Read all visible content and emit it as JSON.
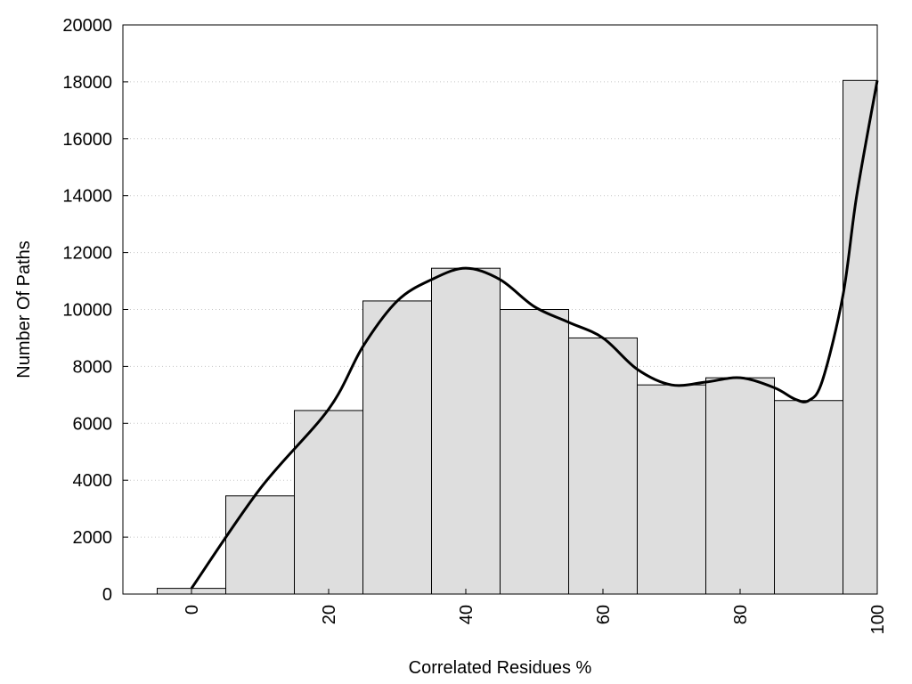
{
  "chart_data": {
    "type": "bar",
    "xlabel": "Correlated Residues %",
    "ylabel": "Number Of Paths",
    "xlim": [
      -10,
      100
    ],
    "ylim": [
      0,
      20000
    ],
    "x_ticks": [
      0,
      20,
      40,
      60,
      80,
      100
    ],
    "y_ticks": [
      0,
      2000,
      4000,
      6000,
      8000,
      10000,
      12000,
      14000,
      16000,
      18000,
      20000
    ],
    "grid": "horizontal dotted",
    "bin_width": 10,
    "bars": [
      {
        "x": 0,
        "value": 200
      },
      {
        "x": 10,
        "value": 3450
      },
      {
        "x": 20,
        "value": 6450
      },
      {
        "x": 30,
        "value": 10300
      },
      {
        "x": 40,
        "value": 11450
      },
      {
        "x": 50,
        "value": 10000
      },
      {
        "x": 60,
        "value": 9000
      },
      {
        "x": 70,
        "value": 7350
      },
      {
        "x": 80,
        "value": 7600
      },
      {
        "x": 90,
        "value": 6800
      },
      {
        "x": 100,
        "value": 18050
      }
    ],
    "curve": {
      "x": [
        0,
        10,
        20,
        25,
        30,
        35,
        40,
        45,
        50,
        55,
        60,
        65,
        70,
        75,
        80,
        85,
        88,
        90,
        92,
        95,
        97,
        100
      ],
      "y": [
        200,
        3700,
        6500,
        8700,
        10300,
        11050,
        11450,
        11050,
        10100,
        9550,
        9000,
        7900,
        7350,
        7450,
        7600,
        7250,
        6850,
        6800,
        7500,
        10500,
        14000,
        18050
      ]
    },
    "colors": {
      "bar_fill": "#dedede",
      "bar_stroke": "#000000",
      "curve": "#000000",
      "grid": "#c8c8c8"
    }
  }
}
